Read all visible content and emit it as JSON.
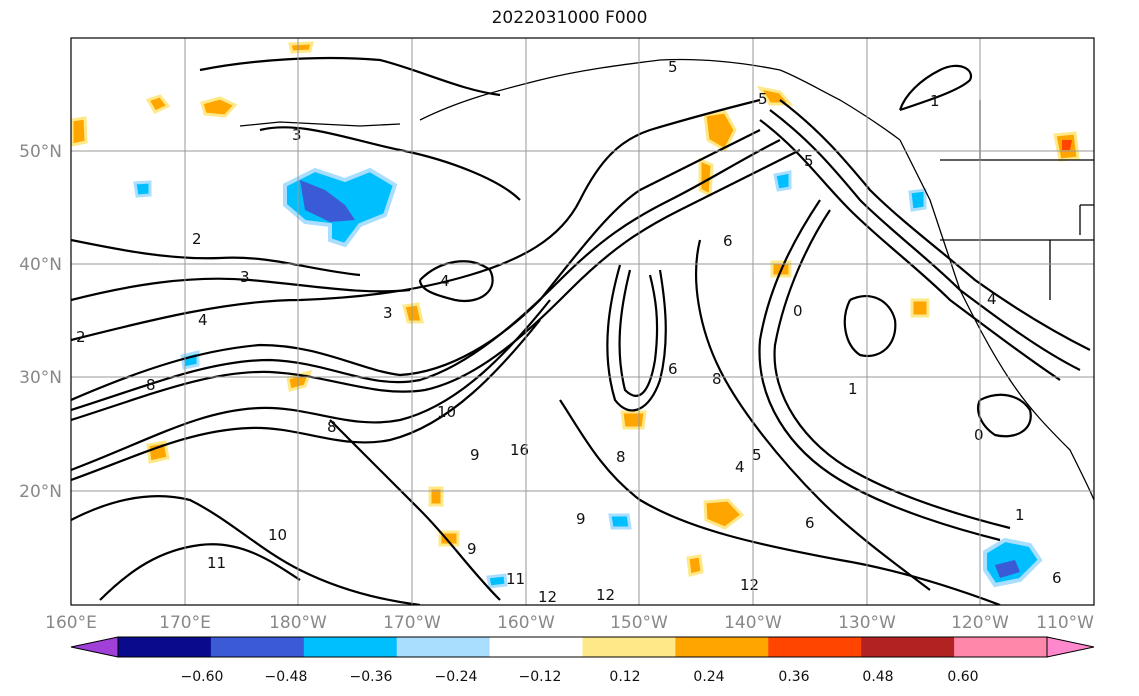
{
  "title": "2022031000 F000",
  "map": {
    "lon_ticks": [
      "160°E",
      "170°E",
      "180°W",
      "170°W",
      "160°W",
      "150°W",
      "140°W",
      "130°W",
      "120°W",
      "110°W"
    ],
    "lat_ticks": [
      "50°N",
      "40°N",
      "30°N",
      "20°N"
    ],
    "lon_range": [
      "160°E",
      "110°W"
    ],
    "lat_range": [
      "10°N",
      "60°N"
    ],
    "grid": true,
    "contour_labels": [
      "3",
      "3",
      "4",
      "4",
      "2",
      "8",
      "8",
      "10",
      "9",
      "16",
      "12",
      "12",
      "11",
      "10",
      "9",
      "8",
      "5",
      "6",
      "6",
      "8",
      "5",
      "4",
      "1",
      "0",
      "4",
      "3",
      "2",
      "1",
      "5",
      "11",
      "12",
      "6",
      "5",
      "1",
      "0",
      "6",
      "9"
    ]
  },
  "colorbar": {
    "ticks": [
      "−0.60",
      "−0.48",
      "−0.36",
      "−0.24",
      "−0.12",
      "0.12",
      "0.24",
      "0.36",
      "0.48",
      "0.60"
    ],
    "colors": [
      "#a040d8",
      "#0a0a8c",
      "#3b5bd6",
      "#00bfff",
      "#aadeff",
      "#ffffff",
      "#ffe888",
      "#ffa500",
      "#ff4500",
      "#b22222",
      "#ff88aa",
      "#ff88cc"
    ]
  }
}
